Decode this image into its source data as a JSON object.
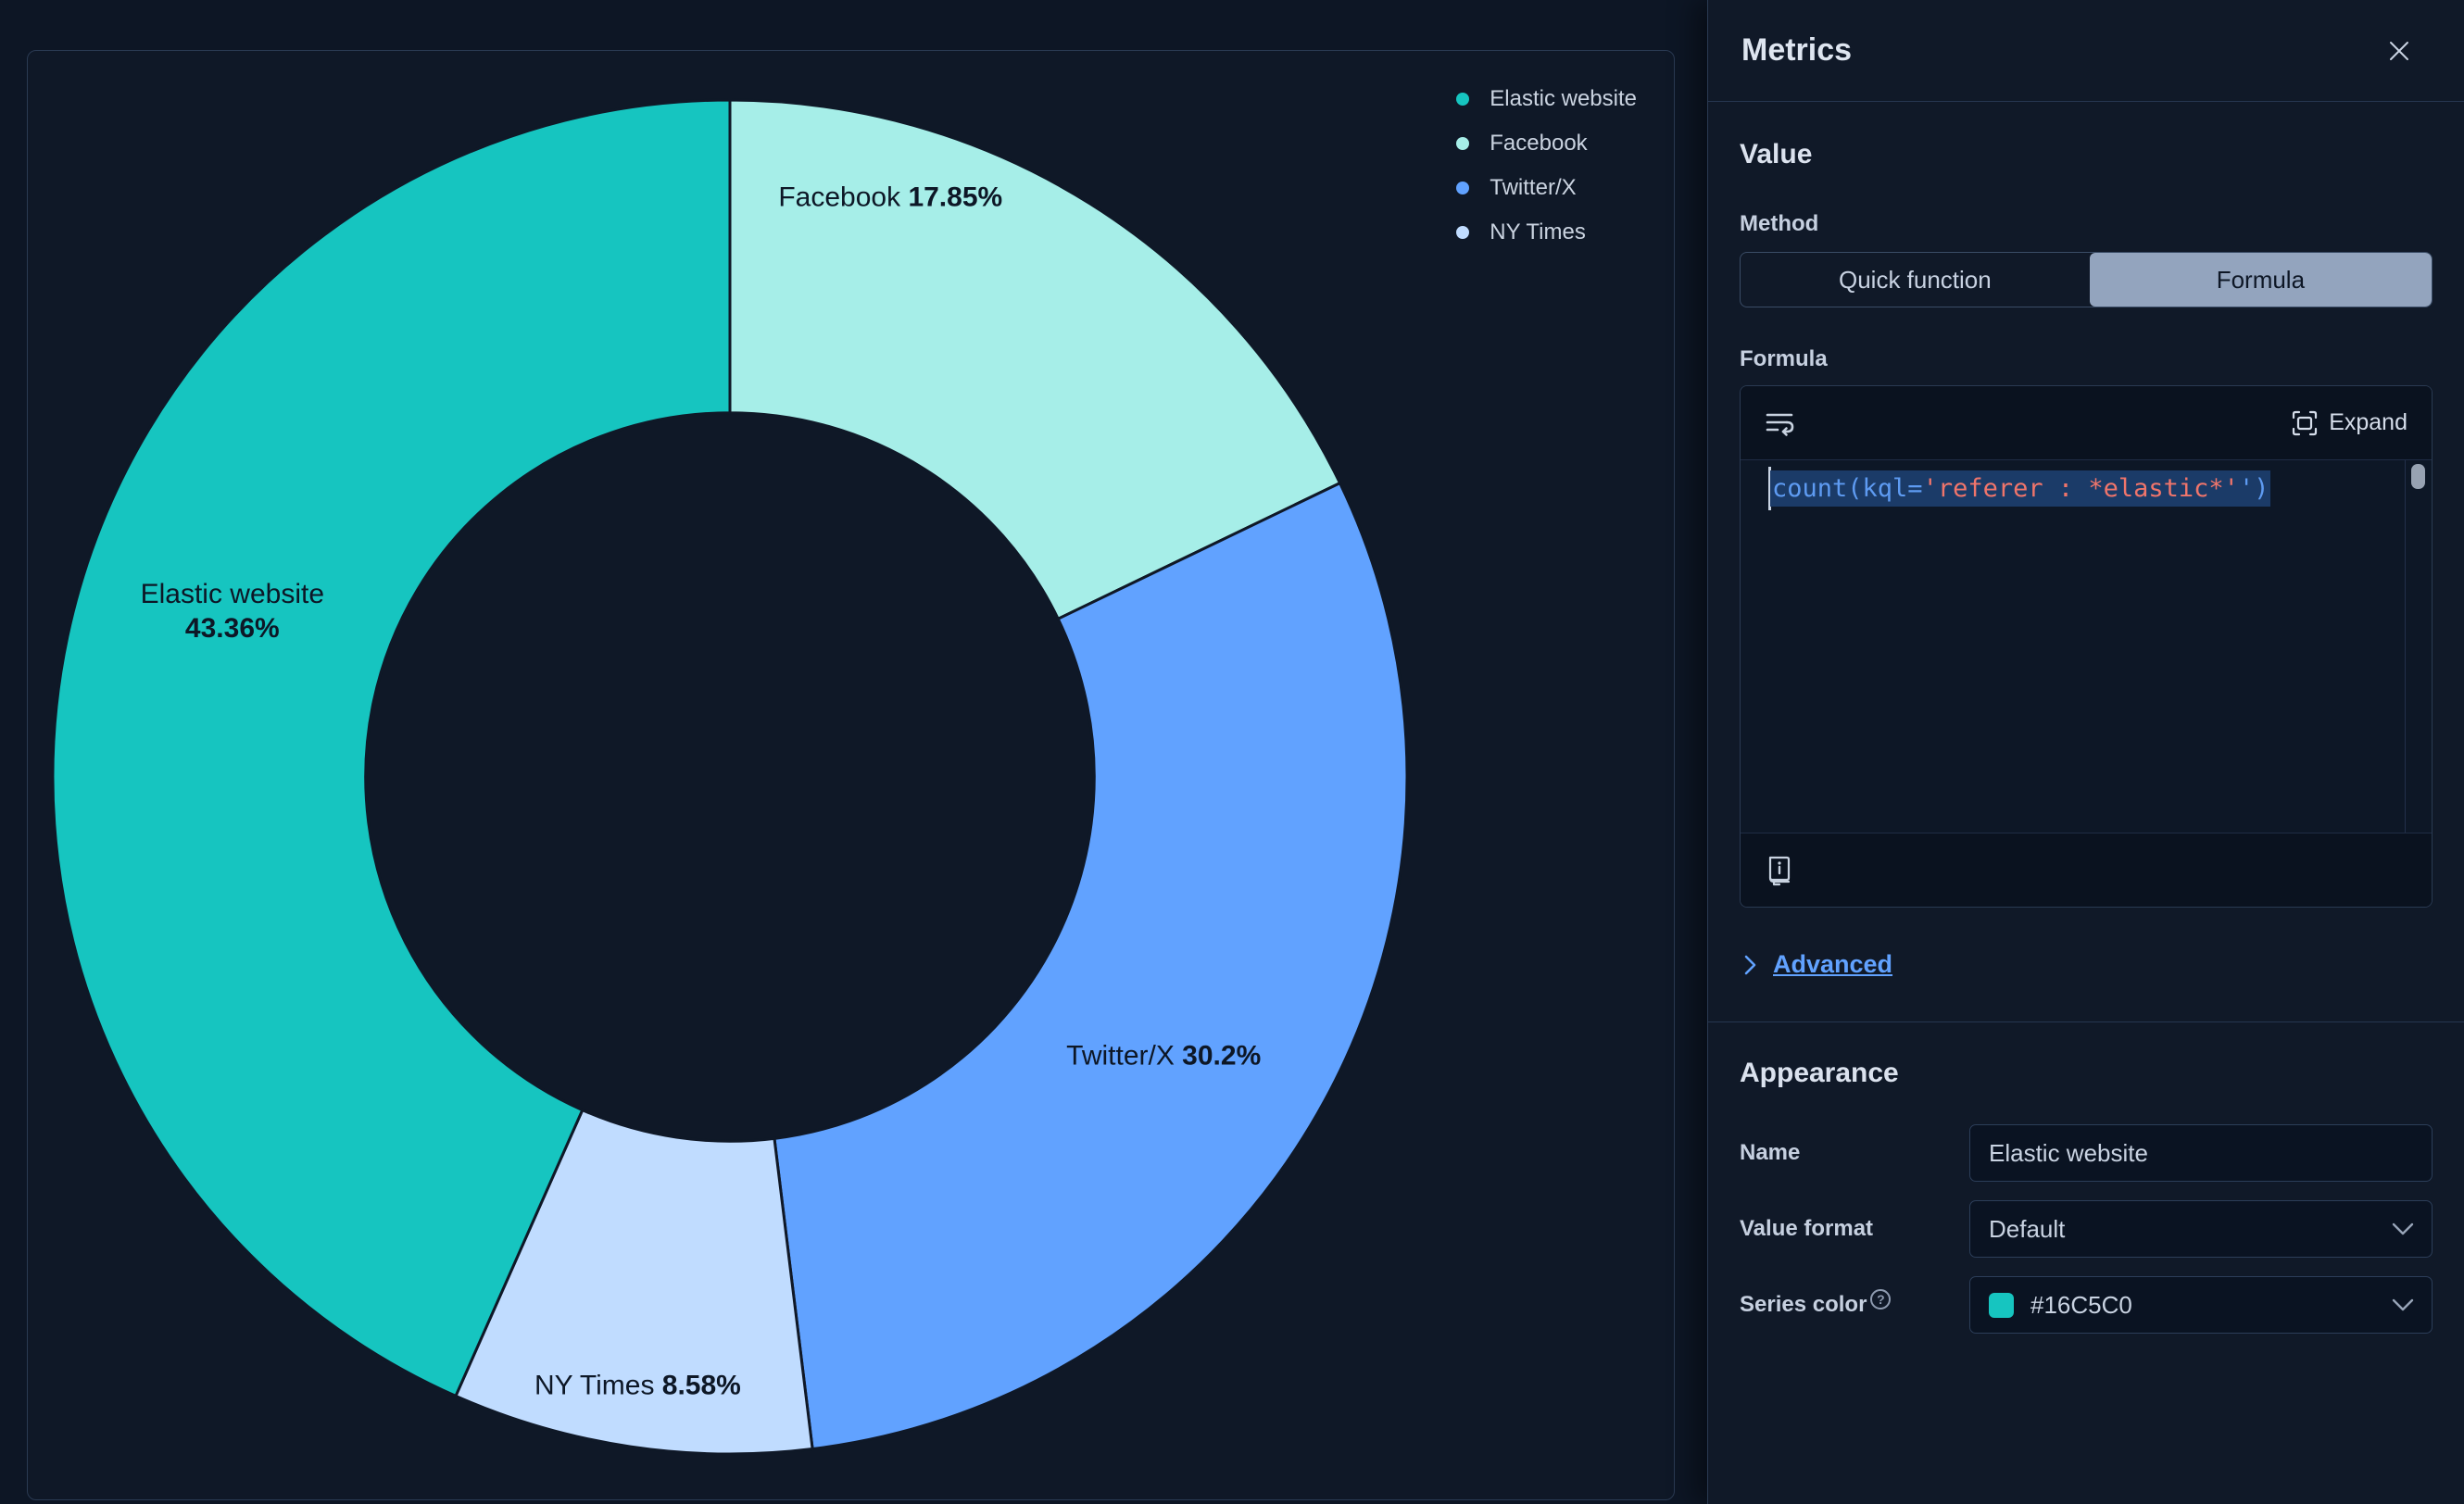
{
  "chart_data": {
    "type": "pie",
    "title": "",
    "slices": [
      {
        "name": "Facebook",
        "value": 17.85,
        "pct_label": "17.85%",
        "color": "#A6EEE8"
      },
      {
        "name": "Twitter/X",
        "value": 30.2,
        "pct_label": "30.2%",
        "color": "#61A2FF"
      },
      {
        "name": "NY Times",
        "value": 8.58,
        "pct_label": "8.58%",
        "color": "#C0DCFF"
      },
      {
        "name": "Elastic website",
        "value": 43.36,
        "pct_label": "43.36%",
        "color": "#16C5C0"
      }
    ],
    "legend": {
      "position": "top-right",
      "items": [
        {
          "label": "Elastic website",
          "color": "#16C5C0"
        },
        {
          "label": "Facebook",
          "color": "#A6EEE8"
        },
        {
          "label": "Twitter/X",
          "color": "#61A2FF"
        },
        {
          "label": "NY Times",
          "color": "#C0DCFF"
        }
      ]
    },
    "layout": {
      "start_at_top": true,
      "clockwise": true,
      "center": [
        758,
        784
      ],
      "outer_radius": 731,
      "inner_radius_ratio": 0.538,
      "slice_border_color": "#0F1827",
      "slice_labels": [
        {
          "angle_deg": 15.5,
          "radius_factor": 0.887,
          "two_line": false
        },
        {
          "angle_deg": 122.8,
          "radius_factor": 0.762,
          "two_line": false
        },
        {
          "angle_deg": 188.6,
          "radius_factor": 0.911,
          "two_line": false
        },
        {
          "angle_deg": 288.3,
          "radius_factor": 0.774,
          "two_line": true
        }
      ]
    }
  },
  "flyout": {
    "title": "Metrics",
    "value_section": {
      "heading": "Value",
      "method_label": "Method",
      "method_options": [
        {
          "label": "Quick function",
          "selected": false
        },
        {
          "label": "Formula",
          "selected": true
        }
      ],
      "formula_label": "Formula",
      "editor": {
        "expand_label": "Expand",
        "code_tokens": [
          {
            "text": "count(kql=",
            "style": "fn"
          },
          {
            "text": "'referer : *elastic*'",
            "style": "str"
          },
          {
            "text": "')",
            "style": "fn"
          }
        ],
        "selected": true
      },
      "advanced_label": "Advanced"
    },
    "appearance_section": {
      "heading": "Appearance",
      "name_row": {
        "label": "Name",
        "value": "Elastic website"
      },
      "value_format_row": {
        "label": "Value format",
        "value": "Default"
      },
      "series_color_row": {
        "label": "Series color",
        "value": "#16C5C0",
        "swatch_color": "#16C5C0"
      }
    }
  },
  "colors": {
    "accent_teal": "#16C5C0",
    "page_bg": "#0D1625",
    "panel_bg": "#0F1827",
    "link_blue": "#61A2FF",
    "code_fn": "#5E9BF2",
    "code_str": "#F0756B",
    "selected_tab_bg": "#93A4BE"
  }
}
